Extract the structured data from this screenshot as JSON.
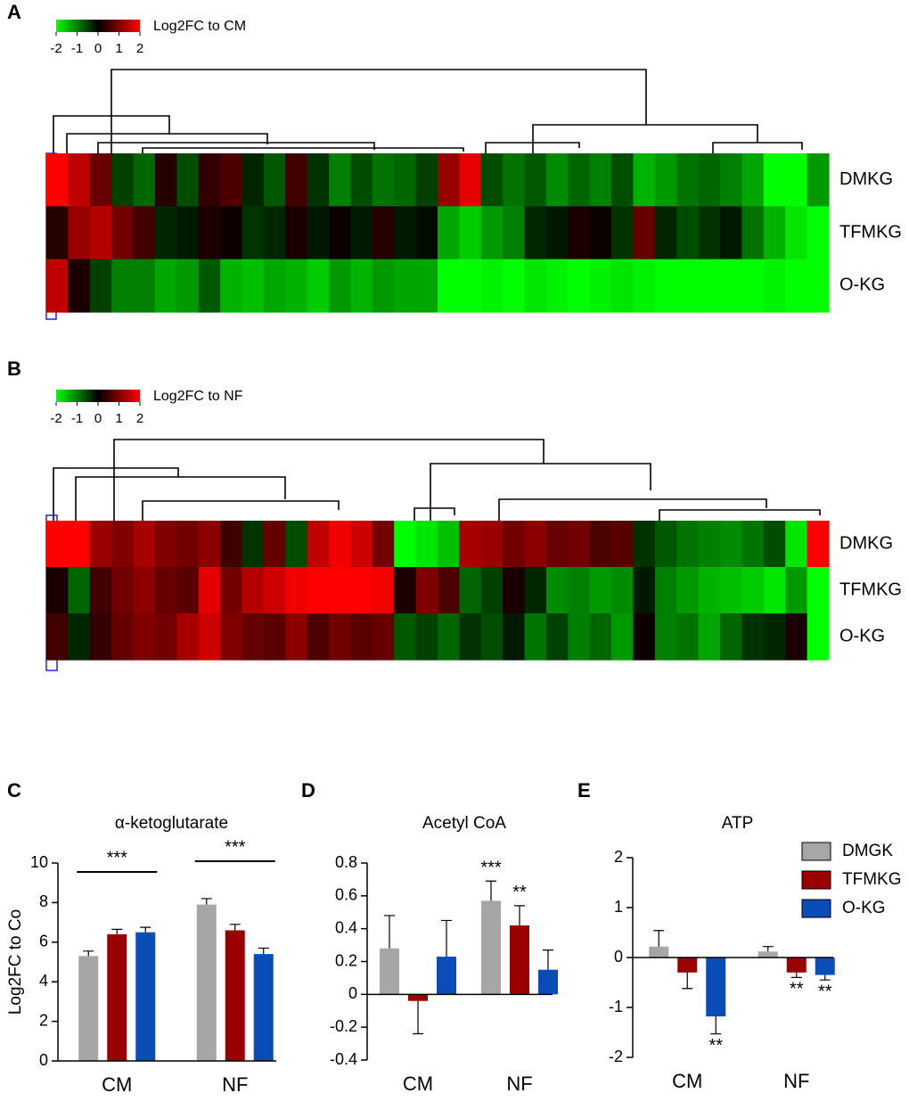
{
  "chart_data": [
    {
      "type": "heatmap",
      "panel": "A",
      "colorbar_label": "Log2FC to CM",
      "zlim": [
        -2,
        2
      ],
      "colorbar_ticks": [
        -2,
        -1,
        0,
        1,
        2
      ],
      "rows": [
        "DMKG",
        "TFMKG",
        "O-KG"
      ],
      "values": [
        [
          2,
          1.5,
          0.8,
          -0.5,
          -0.8,
          0.3,
          -0.6,
          0.4,
          0.6,
          -0.3,
          -0.7,
          0.5,
          -0.4,
          -1,
          -0.6,
          -0.9,
          -0.8,
          -0.5,
          1.2,
          1.8,
          -0.6,
          -0.9,
          -0.7,
          -1.1,
          -0.8,
          -1,
          -0.6,
          -1.4,
          -1.2,
          -0.9,
          -0.8,
          -1,
          -1.3,
          -2,
          -2,
          -1.2
        ],
        [
          0.3,
          1.2,
          1.4,
          0.9,
          0.5,
          -0.3,
          -0.2,
          0.2,
          0.1,
          -0.4,
          -0.3,
          0.2,
          -0.2,
          0.1,
          -0.2,
          0.3,
          -0.2,
          -0.1,
          -1.3,
          -1.6,
          -1.2,
          -1,
          -0.3,
          -0.2,
          0.2,
          0.1,
          -0.4,
          0.8,
          -0.3,
          -0.6,
          -0.4,
          -0.2,
          -0.9,
          -1.4,
          -1.8,
          -2
        ],
        [
          1.5,
          0.2,
          -0.5,
          -1,
          -1,
          -1.3,
          -1.2,
          -0.7,
          -1.4,
          -1.5,
          -1.3,
          -1.4,
          -1.6,
          -1.2,
          -1.4,
          -1.2,
          -1.3,
          -1.3,
          -2,
          -2,
          -1.9,
          -2,
          -1.8,
          -1.9,
          -2,
          -1.9,
          -1.8,
          -1.9,
          -2,
          -2,
          -2,
          -2,
          -2,
          -1.9,
          -2,
          -2
        ]
      ]
    },
    {
      "type": "heatmap",
      "panel": "B",
      "colorbar_label": "Log2FC to NF",
      "zlim": [
        -2,
        2
      ],
      "colorbar_ticks": [
        -2,
        -1,
        0,
        1,
        2
      ],
      "rows": [
        "DMKG",
        "TFMKG",
        "O-KG"
      ],
      "values": [
        [
          2,
          2,
          1.2,
          1,
          1.3,
          1,
          0.9,
          1.1,
          0.5,
          -0.4,
          0.8,
          -0.6,
          1.5,
          1.9,
          1.6,
          0.9,
          -2,
          -1.8,
          -1.5,
          1.3,
          1.2,
          0.9,
          1.1,
          0.8,
          0.9,
          0.6,
          0.7,
          -0.4,
          -0.7,
          -0.9,
          -1,
          -1.1,
          -0.9,
          -0.6,
          -1.8,
          2
        ],
        [
          0.2,
          -0.8,
          0.5,
          0.9,
          1.1,
          0.8,
          0.7,
          1.8,
          0.9,
          1.4,
          1.6,
          1.9,
          2,
          2,
          2,
          1.9,
          0.2,
          1,
          0.6,
          -0.8,
          -0.5,
          0.2,
          -0.3,
          -1.1,
          -1,
          -1.2,
          -1.1,
          -0.2,
          -1,
          -1.2,
          -1.4,
          -1.5,
          -1.6,
          -1.8,
          -1.2,
          -2
        ],
        [
          0.5,
          -0.3,
          0.4,
          0.8,
          1,
          0.9,
          1.3,
          1.6,
          1,
          0.8,
          0.7,
          1.1,
          0.6,
          0.9,
          0.7,
          0.8,
          -0.7,
          -0.5,
          -0.8,
          -0.4,
          -0.6,
          -0.2,
          -0.9,
          -0.5,
          -1,
          -0.8,
          -1.2,
          0.1,
          -1,
          -0.9,
          -1.3,
          -0.8,
          -0.4,
          -0.3,
          0.2,
          -2
        ]
      ]
    },
    {
      "type": "bar",
      "panel": "C",
      "title": "α-ketoglutarate",
      "ylabel": "Log2FC to Co",
      "categories": [
        "CM",
        "NF"
      ],
      "ylim": [
        0,
        10
      ],
      "yticks": [
        0,
        2,
        4,
        6,
        8,
        10
      ],
      "group_annotations": [
        "***",
        "***"
      ],
      "series": [
        {
          "name": "DMGK",
          "color": "#a6a6a6",
          "values": [
            5.3,
            7.9
          ],
          "errors": [
            0.25,
            0.3
          ]
        },
        {
          "name": "TFMKG",
          "color": "#9b0000",
          "values": [
            6.4,
            6.6
          ],
          "errors": [
            0.25,
            0.3
          ]
        },
        {
          "name": "O-KG",
          "color": "#0a4db8",
          "values": [
            6.5,
            5.4
          ],
          "errors": [
            0.25,
            0.3
          ]
        }
      ]
    },
    {
      "type": "bar",
      "panel": "D",
      "title": "Acetyl CoA",
      "categories": [
        "CM",
        "NF"
      ],
      "ylim": [
        -0.4,
        0.8
      ],
      "yticks": [
        -0.4,
        -0.2,
        0,
        0.2,
        0.4,
        0.6,
        0.8
      ],
      "series": [
        {
          "name": "DMGK",
          "color": "#a6a6a6",
          "values": [
            0.28,
            0.57
          ],
          "errors": [
            0.2,
            0.12
          ],
          "annotations": [
            null,
            "***"
          ]
        },
        {
          "name": "TFMKG",
          "color": "#9b0000",
          "values": [
            -0.04,
            0.42
          ],
          "errors": [
            0.2,
            0.12
          ],
          "annotations": [
            null,
            "**"
          ]
        },
        {
          "name": "O-KG",
          "color": "#0a4db8",
          "values": [
            0.23,
            0.15
          ],
          "errors": [
            0.22,
            0.12
          ]
        }
      ]
    },
    {
      "type": "bar",
      "panel": "E",
      "title": "ATP",
      "legend": "upper right",
      "categories": [
        "CM",
        "NF"
      ],
      "ylim": [
        -2,
        2
      ],
      "yticks": [
        -2,
        -1,
        0,
        1,
        2
      ],
      "series": [
        {
          "name": "DMGK",
          "color": "#a6a6a6",
          "values": [
            0.22,
            0.12
          ],
          "errors": [
            0.32,
            0.1
          ]
        },
        {
          "name": "TFMKG",
          "color": "#9b0000",
          "values": [
            -0.3,
            -0.3
          ],
          "errors": [
            0.32,
            0.1
          ],
          "annotations": [
            null,
            "**"
          ]
        },
        {
          "name": "O-KG",
          "color": "#0a4db8",
          "values": [
            -1.18,
            -0.35
          ],
          "errors": [
            0.35,
            0.1
          ],
          "annotations": [
            "**",
            "**"
          ]
        }
      ]
    }
  ]
}
